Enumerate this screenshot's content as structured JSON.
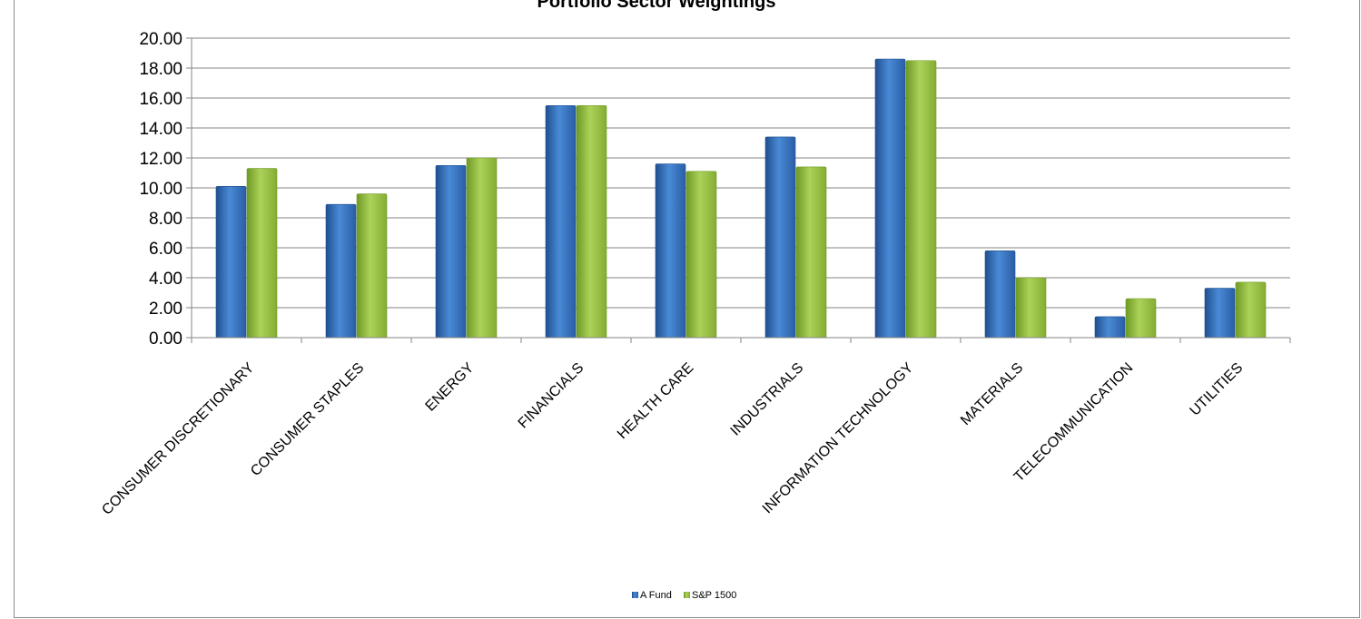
{
  "colors": {
    "series_1": "#3d7cc9",
    "series_1_dark": "#1f4f8f",
    "series_2": "#9bc545",
    "series_2_dark": "#6e9a24",
    "gridline": "#868686",
    "axis": "#868686"
  },
  "chart_data": {
    "type": "bar",
    "title": "Portfolio Sector Weightings",
    "xlabel": "",
    "ylabel": "",
    "ylim": [
      0,
      20
    ],
    "ytick_step": 2,
    "ytick_labels": [
      "0.00",
      "2.00",
      "4.00",
      "6.00",
      "8.00",
      "10.00",
      "12.00",
      "14.00",
      "16.00",
      "18.00",
      "20.00"
    ],
    "grid": true,
    "legend_position": "bottom",
    "categories": [
      "CONSUMER DISCRETIONARY",
      "CONSUMER STAPLES",
      "ENERGY",
      "FINANCIALS",
      "HEALTH CARE",
      "INDUSTRIALS",
      "INFORMATION TECHNOLOGY",
      "MATERIALS",
      "TELECOMMUNICATION",
      "UTILITIES"
    ],
    "series": [
      {
        "name": "A Fund",
        "values": [
          10.1,
          8.9,
          11.5,
          15.5,
          11.6,
          13.4,
          18.6,
          5.8,
          1.4,
          3.3
        ]
      },
      {
        "name": "S&P 1500",
        "values": [
          11.3,
          9.6,
          12.0,
          15.5,
          11.1,
          11.4,
          18.5,
          4.0,
          2.6,
          3.7
        ]
      }
    ]
  }
}
